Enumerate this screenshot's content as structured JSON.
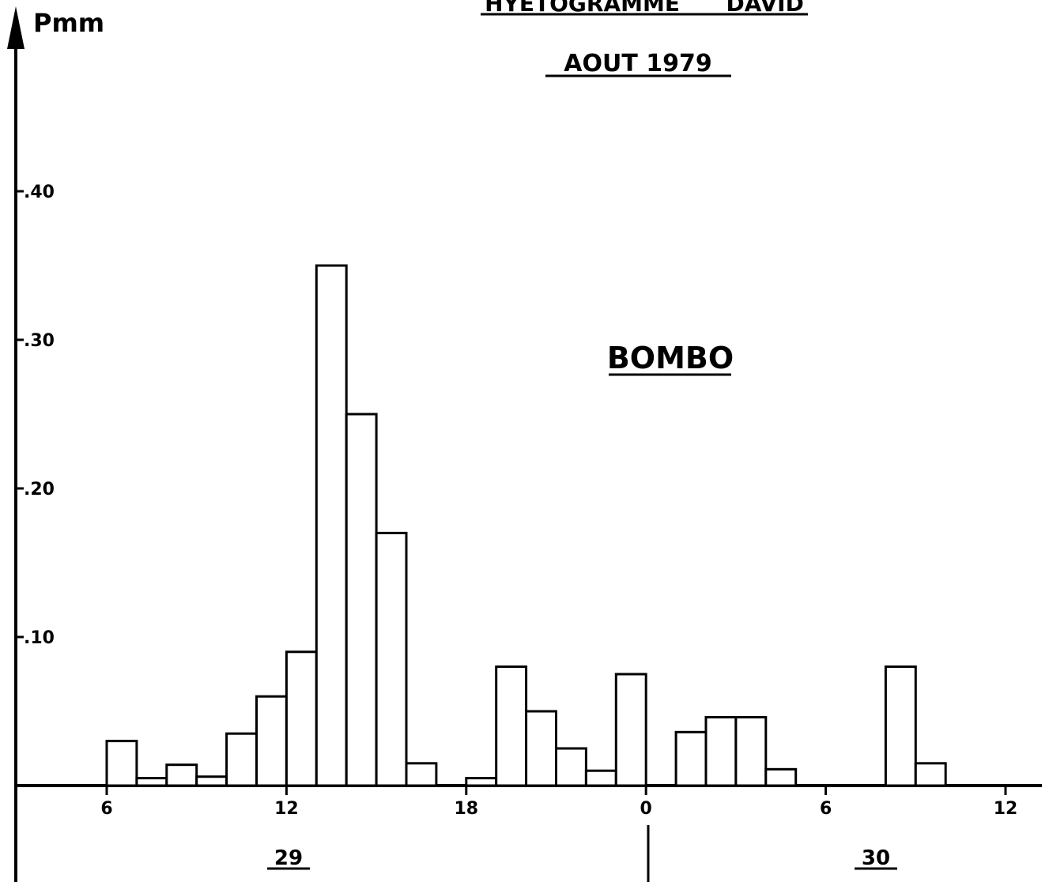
{
  "chart_data": {
    "type": "bar",
    "title": "HYETOGRAMME DAVID",
    "subtitle": "AOUT 1979",
    "annotation": "BOMBO",
    "ylabel": "Pmm",
    "ylim": [
      0,
      40
    ],
    "yticks": [
      ".10",
      ".20",
      ".30",
      ".40"
    ],
    "xticks": [
      "6",
      "12",
      "18",
      "0",
      "6",
      "12"
    ],
    "days": [
      "29",
      "30"
    ],
    "bar_width_hours": 1,
    "series": [
      {
        "values": [
          {
            "start": 6,
            "value": 3
          },
          {
            "start": 7,
            "value": 0.5
          },
          {
            "start": 8,
            "value": 1.4
          },
          {
            "start": 9,
            "value": 0.6
          },
          {
            "start": 10,
            "value": 3.5
          },
          {
            "start": 11,
            "value": 6
          },
          {
            "start": 12,
            "value": 9
          },
          {
            "start": 13,
            "value": 35
          },
          {
            "start": 14,
            "value": 25
          },
          {
            "start": 15,
            "value": 17
          },
          {
            "start": 16,
            "value": 1.5
          },
          {
            "start": 18,
            "value": 0.5
          },
          {
            "start": 19,
            "value": 8
          },
          {
            "start": 20,
            "value": 5
          },
          {
            "start": 21,
            "value": 2.5
          },
          {
            "start": 22,
            "value": 1
          },
          {
            "start": 23,
            "value": 7.5
          },
          {
            "start": 25,
            "value": 3.6
          },
          {
            "start": 26,
            "value": 4.6
          },
          {
            "start": 27,
            "value": 4.6
          },
          {
            "start": 28,
            "value": 1.1
          },
          {
            "start": 32,
            "value": 8
          },
          {
            "start": 33,
            "value": 1.5
          }
        ]
      }
    ]
  }
}
